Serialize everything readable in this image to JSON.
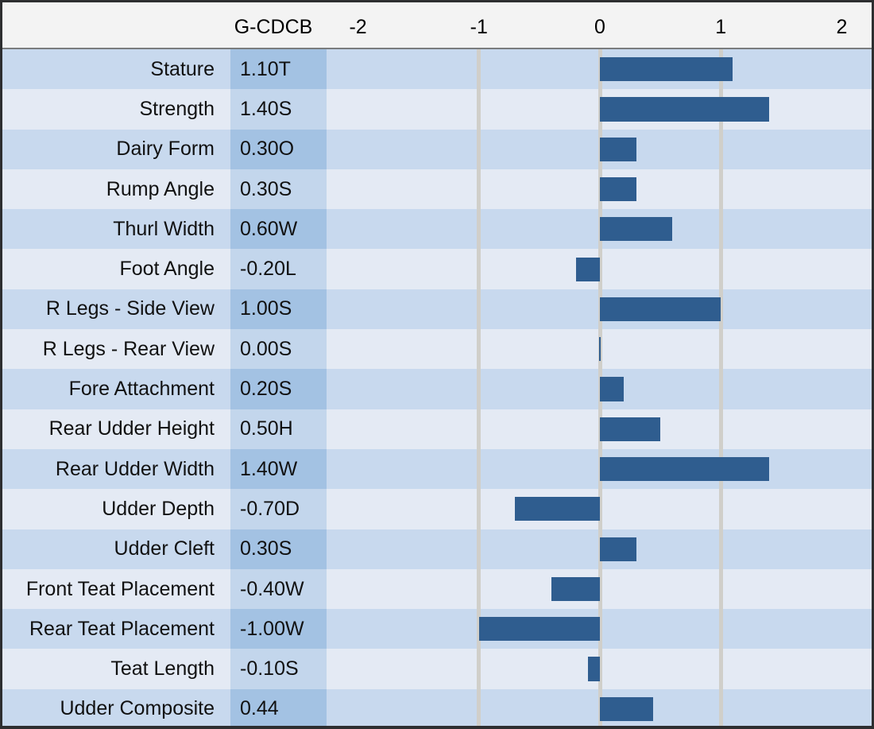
{
  "header": {
    "value_column_label": "G-CDCB"
  },
  "chart_data": {
    "type": "bar",
    "orientation": "horizontal",
    "title": "",
    "value_column_label": "G-CDCB",
    "categories": [
      "Stature",
      "Strength",
      "Dairy Form",
      "Rump Angle",
      "Thurl Width",
      "Foot Angle",
      "R Legs - Side View",
      "R Legs - Rear View",
      "Fore Attachment",
      "Rear Udder Height",
      "Rear Udder Width",
      "Udder Depth",
      "Udder Cleft",
      "Front Teat Placement",
      "Rear Teat Placement",
      "Teat Length",
      "Udder Composite"
    ],
    "value_labels": [
      "1.10T",
      "1.40S",
      "0.30O",
      "0.30S",
      "0.60W",
      "-0.20L",
      "1.00S",
      "0.00S",
      "0.20S",
      "0.50H",
      "1.40W",
      "-0.70D",
      "0.30S",
      "-0.40W",
      "-1.00W",
      "-0.10S",
      "0.44"
    ],
    "values": [
      1.1,
      1.4,
      0.3,
      0.3,
      0.6,
      -0.2,
      1.0,
      0.0,
      0.2,
      0.5,
      1.4,
      -0.7,
      0.3,
      -0.4,
      -1.0,
      -0.1,
      0.44
    ],
    "xticks": [
      -2,
      -1,
      0,
      1,
      2
    ],
    "xtick_labels": [
      "-2",
      "-1",
      "0",
      "1",
      "2"
    ],
    "xlim": [
      -2.26,
      2.27
    ],
    "gridlines_at": [
      -1,
      0,
      1
    ],
    "legend": null,
    "grid": "vertical-major-only"
  },
  "colors": {
    "bar": "#2f5d8f",
    "zero_bar_line": "#2f5d8f",
    "row_dark": "#c8d9ee",
    "row_light": "#e4eaf4",
    "value_cell_dark": "#a3c2e3",
    "value_cell_light": "#c3d6ec",
    "header_bg": "#f3f3f3",
    "gridline": "#d0cfca",
    "frame_border": "#2d2e30",
    "header_separator": "#7a7c7e",
    "text": "#111111"
  }
}
